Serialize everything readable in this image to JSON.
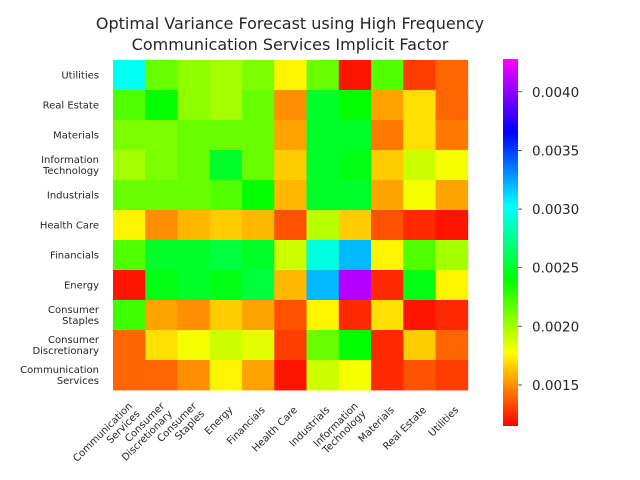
{
  "chart_data": {
    "type": "heatmap",
    "title_lines": [
      "Optimal Variance Forecast using High Frequency",
      "Communication Services Implicit Factor"
    ],
    "xlabel": "",
    "ylabel": "",
    "x_categories": [
      [
        "Communication",
        "Services"
      ],
      [
        "Consumer",
        "Discretionary"
      ],
      [
        "Consumer",
        "Staples"
      ],
      [
        "Energy"
      ],
      [
        "Financials"
      ],
      [
        "Health Care"
      ],
      [
        "Industrials"
      ],
      [
        "Information",
        "Technology"
      ],
      [
        "Materials"
      ],
      [
        "Real Estate"
      ],
      [
        "Utilities"
      ]
    ],
    "y_categories_top_to_bottom": [
      [
        "Utilities"
      ],
      [
        "Real Estate"
      ],
      [
        "Materials"
      ],
      [
        "Information",
        "Technology"
      ],
      [
        "Industrials"
      ],
      [
        "Health Care"
      ],
      [
        "Financials"
      ],
      [
        "Energy"
      ],
      [
        "Consumer",
        "Staples"
      ],
      [
        "Consumer",
        "Discretionary"
      ],
      [
        "Communication",
        "Services"
      ]
    ],
    "values_top_to_bottom": [
      [
        0.003,
        0.00215,
        0.00205,
        0.002,
        0.0021,
        0.00175,
        0.00215,
        0.0012,
        0.0022,
        0.0013,
        0.0014
      ],
      [
        0.0022,
        0.0024,
        0.00205,
        0.002,
        0.00215,
        0.0015,
        0.0025,
        0.0024,
        0.00155,
        0.0017,
        0.0014
      ],
      [
        0.0021,
        0.0021,
        0.00215,
        0.00215,
        0.00215,
        0.00155,
        0.0025,
        0.0025,
        0.00145,
        0.0017,
        0.00145
      ],
      [
        0.002,
        0.0021,
        0.00215,
        0.0025,
        0.00215,
        0.00165,
        0.0025,
        0.00245,
        0.00165,
        0.0019,
        0.0018
      ],
      [
        0.00215,
        0.00215,
        0.00215,
        0.0022,
        0.0024,
        0.0016,
        0.0025,
        0.0025,
        0.00155,
        0.0018,
        0.00155
      ],
      [
        0.00175,
        0.0015,
        0.0016,
        0.00165,
        0.0016,
        0.00135,
        0.00195,
        0.00165,
        0.00135,
        0.00125,
        0.0012
      ],
      [
        0.0022,
        0.0025,
        0.0025,
        0.00255,
        0.0025,
        0.0019,
        0.00295,
        0.0032,
        0.00175,
        0.0022,
        0.002
      ],
      [
        0.0012,
        0.00245,
        0.0025,
        0.00245,
        0.00255,
        0.0016,
        0.0032,
        0.0041,
        0.00125,
        0.00245,
        0.00175
      ],
      [
        0.00225,
        0.00155,
        0.0015,
        0.00165,
        0.00155,
        0.00135,
        0.00175,
        0.00125,
        0.0017,
        0.0012,
        0.00125
      ],
      [
        0.0014,
        0.0017,
        0.0018,
        0.0019,
        0.00185,
        0.0013,
        0.00215,
        0.0024,
        0.00125,
        0.00165,
        0.0014
      ],
      [
        0.0014,
        0.0014,
        0.0015,
        0.00175,
        0.00155,
        0.0012,
        0.0019,
        0.0018,
        0.00125,
        0.00135,
        0.0013
      ]
    ],
    "colorbar": {
      "min": 0.00115,
      "max": 0.00428,
      "ticks": [
        0.0015,
        0.002,
        0.0025,
        0.003,
        0.0035,
        0.004
      ],
      "tick_labels": [
        "0.0015",
        "0.0020",
        "0.0025",
        "0.0030",
        "0.0035",
        "0.0040"
      ],
      "colormap": "gist_rainbow_r"
    },
    "grid": false
  }
}
